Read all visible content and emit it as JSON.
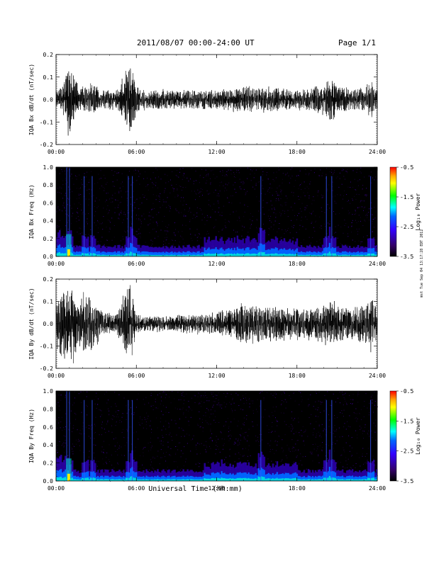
{
  "header": {
    "date_range": "2011/08/07  00:00-24:00 UT",
    "page": "Page 1/1"
  },
  "side_stamp": "mst Tue Sep 04 13:17:28 EDT 2012",
  "colors": {
    "background": "#ffffff",
    "spectrogram_base": "#000000",
    "waveform_line": "#000000",
    "colorbar": [
      "#ff0000",
      "#ffaa00",
      "#ffff00",
      "#00ff00",
      "#00ffff",
      "#0066ff",
      "#3300ff",
      "#330066",
      "#000000"
    ]
  },
  "chart_data": [
    {
      "type": "line",
      "title": "",
      "ylabel": "IQA Bx dB/dt (nT/sec)",
      "xlabel": "",
      "xlim": [
        0,
        24
      ],
      "ylim": [
        -0.2,
        0.2
      ],
      "xticks": [
        "00:00",
        "06:00",
        "12:00",
        "18:00",
        "24:00"
      ],
      "yticks": [
        "-0.2",
        "-0.1",
        "0.0",
        "0.1",
        "0.2"
      ],
      "series": [
        {
          "x": [
            0,
            0.5,
            0.9,
            1.2,
            1.8,
            2.6,
            3.5,
            4.5,
            5.4,
            5.6,
            6.0,
            7,
            8,
            9,
            10,
            11,
            12,
            13,
            14,
            15,
            16,
            17,
            18,
            19,
            20,
            20.5,
            21,
            22,
            23,
            23.6,
            24
          ],
          "amplitude": [
            0.04,
            0.08,
            0.2,
            0.15,
            0.06,
            0.08,
            0.05,
            0.05,
            0.16,
            0.2,
            0.07,
            0.05,
            0.05,
            0.05,
            0.05,
            0.05,
            0.05,
            0.06,
            0.07,
            0.06,
            0.07,
            0.06,
            0.05,
            0.06,
            0.08,
            0.12,
            0.07,
            0.06,
            0.06,
            0.1,
            0.05
          ]
        }
      ]
    },
    {
      "type": "heatmap",
      "title": "",
      "ylabel": "IQA Bx Freq (Hz)",
      "xlabel": "",
      "xlim": [
        0,
        24
      ],
      "ylim": [
        0,
        1.0
      ],
      "xticks": [
        "00:00",
        "06:00",
        "12:00",
        "18:00",
        "24:00"
      ],
      "yticks": [
        "0.0",
        "0.2",
        "0.4",
        "0.6",
        "0.8",
        "1.0"
      ],
      "colorbar": {
        "label": "Log₁₀ Power",
        "range": [
          -3.5,
          -0.5
        ],
        "ticks": [
          "-0.5",
          "-1.5",
          "-2.5",
          "-3.5"
        ]
      },
      "activity_x": [
        0.8,
        1.0,
        2.1,
        2.7,
        5.4,
        5.7,
        15.3,
        20.2,
        20.6,
        23.5
      ]
    },
    {
      "type": "line",
      "title": "",
      "ylabel": "IQA By dB/dt (nT/sec)",
      "xlabel": "",
      "xlim": [
        0,
        24
      ],
      "ylim": [
        -0.2,
        0.2
      ],
      "xticks": [
        "00:00",
        "06:00",
        "12:00",
        "18:00",
        "24:00"
      ],
      "yticks": [
        "-0.2",
        "-0.1",
        "0.0",
        "0.1",
        "0.2"
      ],
      "series": [
        {
          "x": [
            0,
            0.5,
            0.9,
            1.2,
            1.8,
            2.6,
            3.5,
            4.5,
            5.4,
            5.6,
            6.0,
            7,
            8,
            9,
            10,
            11,
            12,
            13,
            14,
            15,
            16,
            17,
            18,
            19,
            20,
            20.5,
            21,
            22,
            23,
            23.6,
            24
          ],
          "amplitude": [
            0.1,
            0.2,
            0.2,
            0.2,
            0.15,
            0.15,
            0.06,
            0.05,
            0.2,
            0.2,
            0.05,
            0.04,
            0.04,
            0.04,
            0.05,
            0.05,
            0.06,
            0.08,
            0.1,
            0.1,
            0.09,
            0.09,
            0.08,
            0.08,
            0.09,
            0.12,
            0.1,
            0.09,
            0.1,
            0.15,
            0.08
          ]
        }
      ]
    },
    {
      "type": "heatmap",
      "title": "",
      "ylabel": "IQA By Freq (Hz)",
      "xlabel": "Universal Time (hh:mm)",
      "xlim": [
        0,
        24
      ],
      "ylim": [
        0,
        1.0
      ],
      "xticks": [
        "00:00",
        "06:00",
        "12:00",
        "18:00",
        "24:00"
      ],
      "yticks": [
        "0.0",
        "0.2",
        "0.4",
        "0.6",
        "0.8",
        "1.0"
      ],
      "colorbar": {
        "label": "Log₁₀ Power",
        "range": [
          -3.5,
          -0.5
        ],
        "ticks": [
          "-0.5",
          "-1.5",
          "-2.5",
          "-3.5"
        ]
      },
      "activity_x": [
        0.8,
        1.0,
        2.1,
        2.7,
        5.4,
        5.7,
        15.3,
        20.2,
        20.6,
        23.5
      ]
    }
  ]
}
